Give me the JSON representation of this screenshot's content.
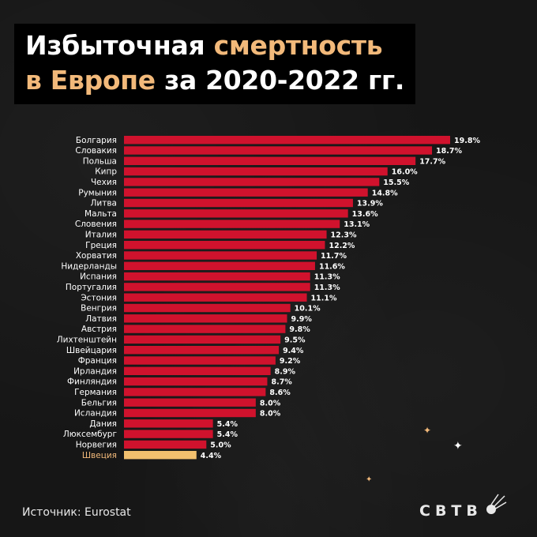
{
  "header": {
    "title_line1_part1": "Избыточная ",
    "title_line1_accent": "смертность",
    "title_line2_part1": "в Европе",
    "title_line2_part2": " за 2020-2022 гг."
  },
  "footer": {
    "source": "Источник: Eurostat",
    "logo": "СВТВ"
  },
  "colors": {
    "bar": "#d0122d",
    "highlight_bar": "#f2c06e",
    "highlight_label": "#f2b97a",
    "accent": "#f2b97a"
  },
  "chart_data": {
    "type": "bar",
    "orientation": "horizontal",
    "title": "Избыточная смертность в Европе за 2020-2022 гг.",
    "xlabel": "",
    "ylabel": "",
    "unit": "%",
    "highlight": "Швеция",
    "categories": [
      "Болгария",
      "Словакия",
      "Польша",
      "Кипр",
      "Чехия",
      "Румыния",
      "Литва",
      "Мальта",
      "Словения",
      "Италия",
      "Греция",
      "Хорватия",
      "Нидерланды",
      "Испания",
      "Португалия",
      "Эстония",
      "Венгрия",
      "Латвия",
      "Австрия",
      "Лихтенштейн",
      "Швейцария",
      "Франция",
      "Ирландия",
      "Финляндия",
      "Германия",
      "Бельгия",
      "Исландия",
      "Дания",
      "Люксембург",
      "Норвегия",
      "Швеция"
    ],
    "values": [
      19.8,
      18.7,
      17.7,
      16.0,
      15.5,
      14.8,
      13.9,
      13.6,
      13.1,
      12.3,
      12.2,
      11.7,
      11.6,
      11.3,
      11.3,
      11.1,
      10.1,
      9.9,
      9.8,
      9.5,
      9.4,
      9.2,
      8.9,
      8.7,
      8.6,
      8.0,
      8.0,
      5.4,
      5.4,
      5.0,
      4.4
    ],
    "labels": [
      "19.8%",
      "18.7%",
      "17.7%",
      "16.0%",
      "15.5%",
      "14.8%",
      "13.9%",
      "13.6%",
      "13.1%",
      "12.3%",
      "12.2%",
      "11.7%",
      "11.6%",
      "11.3%",
      "11.3%",
      "11.1%",
      "10.1%",
      "9.9%",
      "9.8%",
      "9.5%",
      "9.4%",
      "9.2%",
      "8.9%",
      "8.7%",
      "8.6%",
      "8.0%",
      "8.0%",
      "5.4%",
      "5.4%",
      "5.0%",
      "4.4%"
    ]
  }
}
